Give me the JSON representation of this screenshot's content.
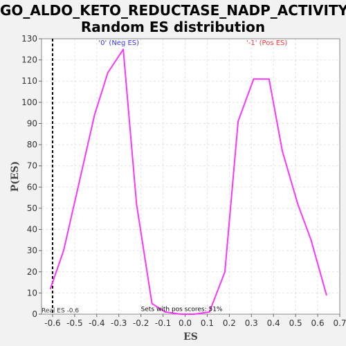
{
  "title_line1": "GO_ALDO_KETO_REDUCTASE_NADP_ACTIVITY:",
  "title_line2": "Random ES distribution",
  "chart_data": {
    "type": "line",
    "xlabel": "ES",
    "ylabel": "P(ES)",
    "xlim": [
      -0.65,
      0.7
    ],
    "ylim": [
      0,
      130
    ],
    "x_ticks": [
      -0.6,
      -0.5,
      -0.4,
      -0.3,
      -0.2,
      -0.1,
      0.0,
      0.1,
      0.2,
      0.3,
      0.4,
      0.5,
      0.6,
      0.7
    ],
    "x_tick_labels": [
      "-0.6",
      "-0.5",
      "-0.4",
      "-0.3",
      "-0.2",
      "-0.1",
      "0.0",
      "0.1",
      "0.2",
      "0.3",
      "0.4",
      "0.5",
      "0.6",
      "0.7"
    ],
    "y_ticks": [
      0,
      10,
      20,
      30,
      40,
      50,
      60,
      70,
      80,
      90,
      100,
      110,
      120,
      130
    ],
    "y_tick_labels": [
      "0",
      "10",
      "20",
      "30",
      "40",
      "50",
      "60",
      "70",
      "80",
      "90",
      "100",
      "110",
      "120",
      "130"
    ],
    "grid": true,
    "series": [
      {
        "color": "#ff33ff",
        "points": [
          [
            -0.61,
            12
          ],
          [
            -0.55,
            30
          ],
          [
            -0.48,
            62
          ],
          [
            -0.41,
            94
          ],
          [
            -0.35,
            114
          ],
          [
            -0.28,
            125
          ],
          [
            -0.22,
            52
          ],
          [
            -0.15,
            5
          ],
          [
            -0.09,
            1
          ],
          [
            -0.02,
            0
          ],
          [
            0.04,
            0
          ],
          [
            0.11,
            1
          ],
          [
            0.18,
            20
          ],
          [
            0.24,
            91
          ],
          [
            0.31,
            111
          ],
          [
            0.38,
            111
          ],
          [
            0.44,
            77
          ],
          [
            0.51,
            52
          ],
          [
            0.57,
            35
          ],
          [
            0.64,
            9
          ]
        ]
      }
    ],
    "annotations": [
      {
        "text": "'0' (Neg ES)",
        "x": -0.3,
        "y": 127,
        "color": "#3333ff"
      },
      {
        "text": "'-1' (Pos ES)",
        "x": 0.37,
        "y": 127,
        "color": "#ff3333"
      },
      {
        "text": "Real ES -0.6",
        "x": -0.65,
        "y": 0.8,
        "color": "#333333"
      },
      {
        "text": "Sets with pos scores: 51%",
        "x": -0.2,
        "y": 1.5,
        "color": "#000000"
      }
    ],
    "real_es_line": {
      "x": -0.6,
      "color": "#000000",
      "style": "dashed"
    }
  }
}
